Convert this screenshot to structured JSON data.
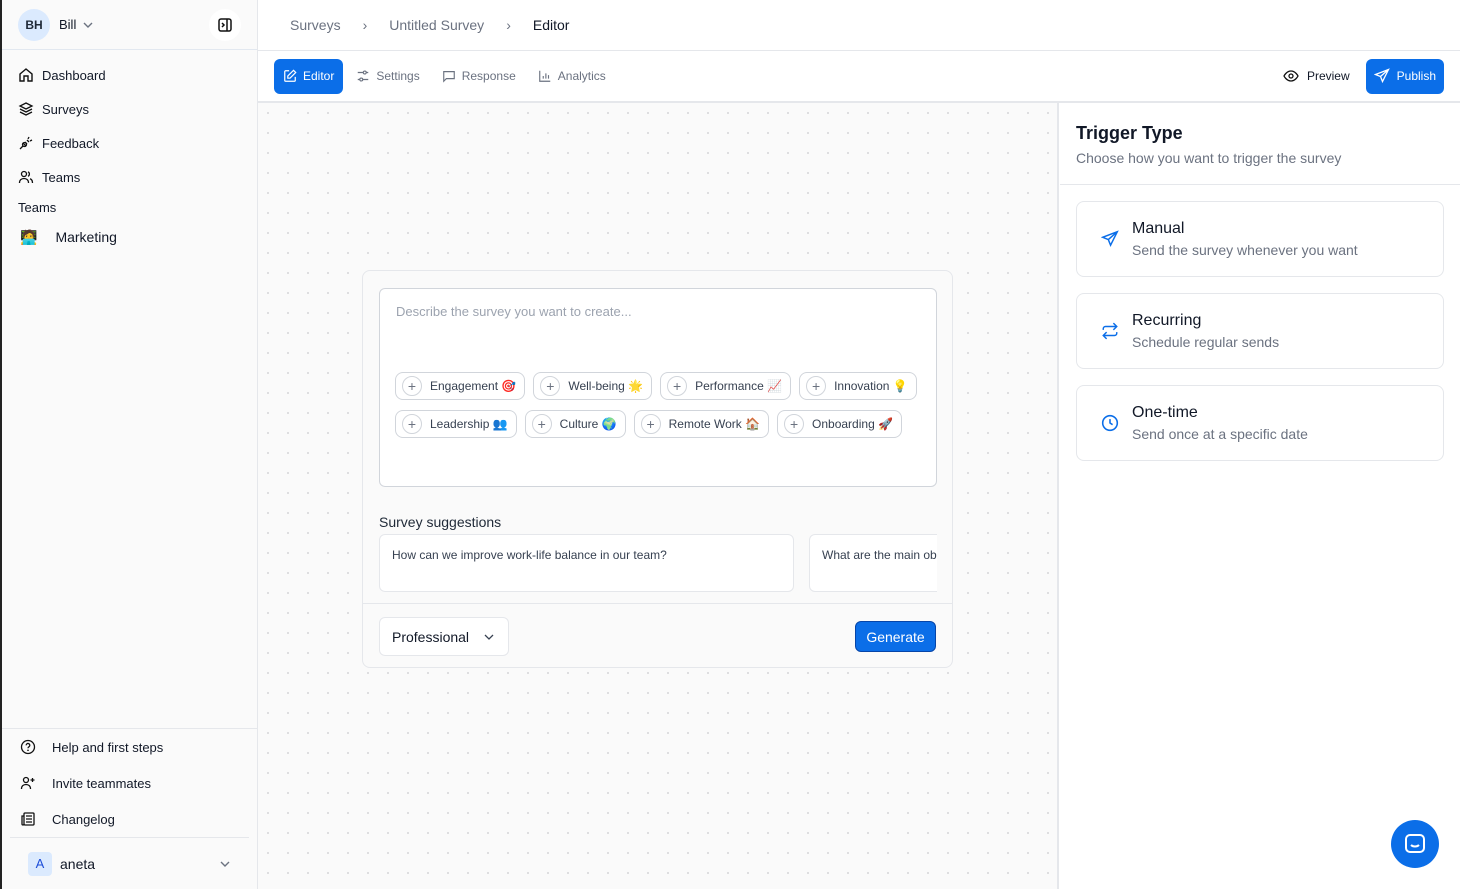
{
  "user": {
    "initials": "BH",
    "name": "Bill"
  },
  "sidebar": {
    "items": [
      {
        "label": "Dashboard",
        "icon": "home-icon"
      },
      {
        "label": "Surveys",
        "icon": "layers-icon"
      },
      {
        "label": "Feedback",
        "icon": "plug-icon"
      },
      {
        "label": "Teams",
        "icon": "users-icon"
      }
    ],
    "teams_heading": "Teams",
    "teams": [
      {
        "label": "Marketing",
        "emoji": "🧑‍💻"
      }
    ],
    "bottom": [
      {
        "label": "Help and first steps"
      },
      {
        "label": "Invite teammates"
      },
      {
        "label": "Changelog"
      }
    ],
    "account": {
      "initial": "A",
      "name": "aneta"
    }
  },
  "breadcrumb": [
    "Surveys",
    "Untitled Survey",
    "Editor"
  ],
  "tabs": [
    {
      "label": "Editor",
      "active": true
    },
    {
      "label": "Settings"
    },
    {
      "label": "Response"
    },
    {
      "label": "Analytics"
    }
  ],
  "actions": {
    "preview": "Preview",
    "publish": "Publish"
  },
  "editor": {
    "placeholder": "Describe the survey you want to create...",
    "chips": [
      "Engagement 🎯",
      "Well-being 🌟",
      "Performance 📈",
      "Innovation 💡",
      "Leadership 👥",
      "Culture 🌍",
      "Remote Work 🏠",
      "Onboarding 🚀"
    ],
    "suggestions_label": "Survey suggestions",
    "suggestions": [
      "How can we improve work-life balance in our team?",
      "What are the main ob"
    ],
    "tone": "Professional",
    "generate": "Generate"
  },
  "panel": {
    "title": "Trigger Type",
    "subtitle": "Choose how you want to trigger the survey",
    "options": [
      {
        "title": "Manual",
        "desc": "Send the survey whenever you want",
        "icon": "send-icon"
      },
      {
        "title": "Recurring",
        "desc": "Schedule regular sends",
        "icon": "repeat-icon"
      },
      {
        "title": "One-time",
        "desc": "Send once at a specific date",
        "icon": "clock-icon"
      }
    ]
  },
  "colors": {
    "accent": "#0b6ee8"
  }
}
